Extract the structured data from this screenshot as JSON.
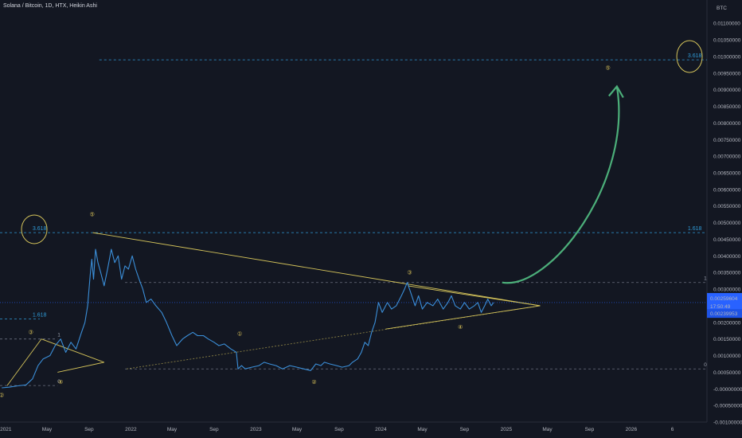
{
  "title": "Solana / Bitcoin, 1D, HTX, Heikin Ashi",
  "currency": "BTC",
  "colors": {
    "background": "#131722",
    "price": "#3b8fd9",
    "price_label": "#2962ff",
    "trendline": "#d4c35a",
    "fib": "#2f9bd8",
    "arrow": "#4caf7a",
    "wave_label": "#e0c85a"
  },
  "badges": {
    "last_price": "0.00259604",
    "countdown": "17:50:49",
    "prev_price": "0.00239953"
  },
  "chart_data": {
    "type": "line",
    "y_axis_scale": "linear",
    "ylim": [
      -0.001,
      0.0117
    ],
    "xlim": [
      "2020-12-15",
      "2026-08-10"
    ],
    "x_tick_labels": [
      {
        "x": "2021-01-01",
        "label": "2021"
      },
      {
        "x": "2021-05-01",
        "label": "May"
      },
      {
        "x": "2021-09-01",
        "label": "Sep"
      },
      {
        "x": "2022-01-01",
        "label": "2022"
      },
      {
        "x": "2022-05-01",
        "label": "May"
      },
      {
        "x": "2022-09-01",
        "label": "Sep"
      },
      {
        "x": "2023-01-01",
        "label": "2023"
      },
      {
        "x": "2023-05-01",
        "label": "May"
      },
      {
        "x": "2023-09-01",
        "label": "Sep"
      },
      {
        "x": "2024-01-01",
        "label": "2024"
      },
      {
        "x": "2024-05-01",
        "label": "May"
      },
      {
        "x": "2024-09-01",
        "label": "Sep"
      },
      {
        "x": "2025-01-01",
        "label": "2025"
      },
      {
        "x": "2025-05-01",
        "label": "May"
      },
      {
        "x": "2025-09-01",
        "label": "Sep"
      },
      {
        "x": "2026-01-01",
        "label": "2026"
      },
      {
        "x": "2026-05-01",
        "label": "6"
      }
    ],
    "y_tick_labels": [
      "0.01100000",
      "0.01050000",
      "0.01000000",
      "0.00950000",
      "0.00900000",
      "0.00850000",
      "0.00800000",
      "0.00750000",
      "0.00700000",
      "0.00650000",
      "0.00600000",
      "0.00550000",
      "0.00500000",
      "0.00450000",
      "0.00400000",
      "0.00350000",
      "0.00300000",
      "0.00250000",
      "0.00200000",
      "0.00150000",
      "0.00100000",
      "0.00050000",
      "-0.00000000",
      "-0.00050000",
      "-0.00100000"
    ],
    "y_tick_values": [
      0.011,
      0.0105,
      0.01,
      0.0095,
      0.009,
      0.0085,
      0.008,
      0.0075,
      0.007,
      0.0065,
      0.006,
      0.0055,
      0.005,
      0.0045,
      0.004,
      0.0035,
      0.003,
      0.0025,
      0.002,
      0.0015,
      0.001,
      0.0005,
      0.0,
      -0.0005,
      -0.001
    ],
    "series": [
      {
        "x": [
          "2020-12-20",
          "2021-01-10",
          "2021-02-05",
          "2021-03-01",
          "2021-03-20",
          "2021-04-05",
          "2021-04-20",
          "2021-05-10",
          "2021-05-25",
          "2021-06-10",
          "2021-06-25",
          "2021-07-10",
          "2021-07-25",
          "2021-08-10",
          "2021-08-20",
          "2021-08-28",
          "2021-09-04",
          "2021-09-09",
          "2021-09-14",
          "2021-09-20",
          "2021-09-27",
          "2021-10-05",
          "2021-10-15",
          "2021-10-25",
          "2021-11-05",
          "2021-11-15",
          "2021-11-25",
          "2021-12-05",
          "2021-12-15",
          "2021-12-25",
          "2022-01-05",
          "2022-01-15",
          "2022-01-25",
          "2022-02-05",
          "2022-02-15",
          "2022-03-01",
          "2022-03-15",
          "2022-04-01",
          "2022-04-15",
          "2022-05-01",
          "2022-05-15",
          "2022-06-01",
          "2022-06-15",
          "2022-07-01",
          "2022-07-15",
          "2022-08-01",
          "2022-08-15",
          "2022-09-01",
          "2022-09-15",
          "2022-10-01",
          "2022-10-20",
          "2022-11-05",
          "2022-11-10",
          "2022-11-20",
          "2022-12-01",
          "2022-12-20",
          "2023-01-10",
          "2023-01-25",
          "2023-02-10",
          "2023-03-01",
          "2023-03-20",
          "2023-04-10",
          "2023-05-01",
          "2023-05-20",
          "2023-06-10",
          "2023-06-25",
          "2023-07-10",
          "2023-07-20",
          "2023-08-05",
          "2023-08-25",
          "2023-09-10",
          "2023-09-30",
          "2023-10-10",
          "2023-10-25",
          "2023-11-05",
          "2023-11-15",
          "2023-11-25",
          "2023-12-05",
          "2023-12-15",
          "2023-12-25",
          "2024-01-05",
          "2024-01-20",
          "2024-02-01",
          "2024-02-15",
          "2024-03-01",
          "2024-03-10",
          "2024-03-18",
          "2024-03-28",
          "2024-04-10",
          "2024-04-20",
          "2024-05-01",
          "2024-05-15",
          "2024-06-01",
          "2024-06-15",
          "2024-07-01",
          "2024-07-15",
          "2024-07-25",
          "2024-08-05",
          "2024-08-20",
          "2024-09-01",
          "2024-09-15",
          "2024-09-30",
          "2024-10-10",
          "2024-10-20",
          "2024-10-30",
          "2024-11-08",
          "2024-11-18",
          "2024-11-25"
        ],
        "y": [
          3e-05,
          5e-05,
          9e-05,
          0.00012,
          0.0003,
          0.0007,
          0.0009,
          0.001,
          0.0013,
          0.0015,
          0.0011,
          0.0014,
          0.0012,
          0.0017,
          0.002,
          0.0025,
          0.0034,
          0.0039,
          0.0033,
          0.0042,
          0.0038,
          0.0035,
          0.0031,
          0.0036,
          0.0042,
          0.0038,
          0.004,
          0.0033,
          0.0037,
          0.0036,
          0.004,
          0.0036,
          0.0033,
          0.003,
          0.0026,
          0.0027,
          0.0025,
          0.0023,
          0.002,
          0.0016,
          0.0013,
          0.0015,
          0.0016,
          0.0017,
          0.0016,
          0.0016,
          0.0015,
          0.0014,
          0.0013,
          0.00135,
          0.0012,
          0.0011,
          0.0006,
          0.0007,
          0.0006,
          0.00065,
          0.0007,
          0.0008,
          0.00075,
          0.0007,
          0.0006,
          0.0007,
          0.00065,
          0.0006,
          0.00055,
          0.00075,
          0.0007,
          0.0008,
          0.00075,
          0.0007,
          0.00065,
          0.0007,
          0.0008,
          0.0009,
          0.0011,
          0.0014,
          0.0013,
          0.0017,
          0.002,
          0.0026,
          0.0023,
          0.0026,
          0.0024,
          0.0025,
          0.0028,
          0.003,
          0.0032,
          0.0029,
          0.0025,
          0.0028,
          0.0024,
          0.0026,
          0.0025,
          0.0027,
          0.0024,
          0.0026,
          0.0028,
          0.0025,
          0.0024,
          0.0026,
          0.0024,
          0.0025,
          0.0026,
          0.0023,
          0.0025,
          0.0027,
          0.0025,
          0.0026
        ]
      }
    ],
    "fib_levels": [
      {
        "label": "3.618",
        "y": 0.0099,
        "x_start": "2021-10-01",
        "x_end": "2026-08-10",
        "label_x": "2026-06-15"
      },
      {
        "label": "1.618",
        "y": 0.0047,
        "x_start": "2020-12-15",
        "x_end": "2026-08-10",
        "label_x": "2026-06-15"
      },
      {
        "label": "3.618",
        "y": 0.0047,
        "label_x": "2021-03-20"
      },
      {
        "label": "1.618",
        "y": 0.0021,
        "x_start": "2020-12-15",
        "x_end": "2021-04-10",
        "label_x": "2021-03-20"
      },
      {
        "label": "1",
        "y": 0.0032,
        "x_start": "2021-12-15",
        "x_end": "2026-08-10",
        "label_x": "2026-08-01"
      },
      {
        "label": "0",
        "y": 0.0006,
        "x_start": "2021-12-15",
        "x_end": "2026-08-10",
        "label_x": "2026-08-01"
      },
      {
        "label": "1",
        "y": 0.0015,
        "x_start": "2020-12-15",
        "x_end": "2021-06-01",
        "label_x": "2021-06-01"
      },
      {
        "label": "0",
        "y": 0.0001,
        "x_start": "2020-12-15",
        "x_end": "2021-06-01",
        "label_x": "2021-06-01"
      }
    ],
    "annotations": [
      {
        "text": "②",
        "x": "2020-12-20",
        "y": -0.00025
      },
      {
        "text": "③",
        "x": "2021-03-15",
        "y": 0.00165
      },
      {
        "text": "④",
        "x": "2021-06-10",
        "y": 0.00015
      },
      {
        "text": "⑤",
        "x": "2021-09-10",
        "y": 0.0052
      },
      {
        "text": "①",
        "x": "2022-11-15",
        "y": 0.0016
      },
      {
        "text": "②",
        "x": "2023-06-20",
        "y": 0.00015
      },
      {
        "text": "③",
        "x": "2024-03-25",
        "y": 0.00345
      },
      {
        "text": "④",
        "x": "2024-08-20",
        "y": 0.0018
      },
      {
        "text": "⑤",
        "x": "2025-10-25",
        "y": 0.0096
      }
    ]
  }
}
